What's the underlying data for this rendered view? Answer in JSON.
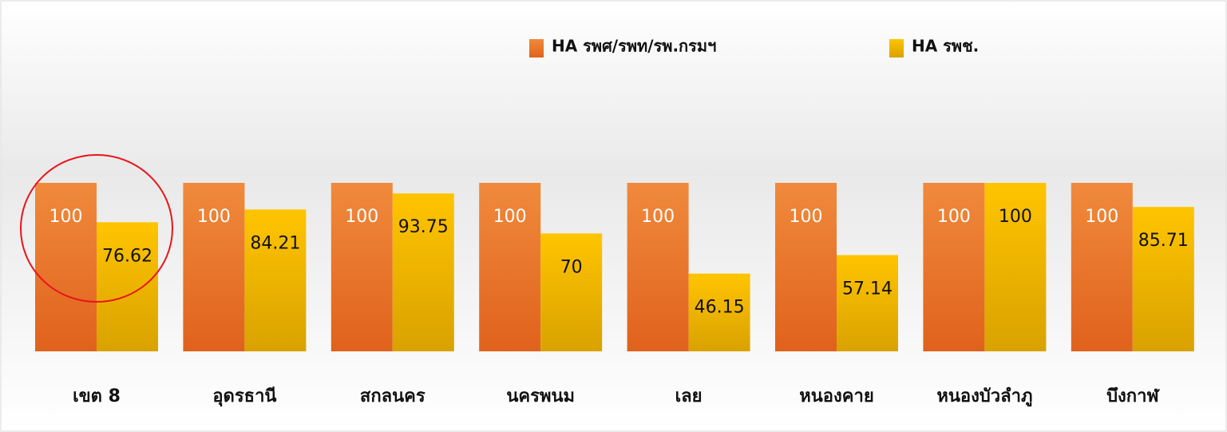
{
  "chart_data": {
    "type": "bar",
    "categories": [
      "เขต 8",
      "อุดรธานี",
      "สกลนคร",
      "นครพนม",
      "เลย",
      "หนองคาย",
      "หนองบัวลำภู",
      "บึงกาฬ"
    ],
    "series": [
      {
        "name": "HA รพศ/รพท/รพ.กรมฯ",
        "color": "#ea7426",
        "values": [
          100,
          100,
          100,
          100,
          100,
          100,
          100,
          100
        ]
      },
      {
        "name": "HA รพช.",
        "color": "#fbbd00",
        "values": [
          76.62,
          84.21,
          93.75,
          70,
          46.15,
          57.14,
          100,
          85.71
        ]
      }
    ]
  }
}
